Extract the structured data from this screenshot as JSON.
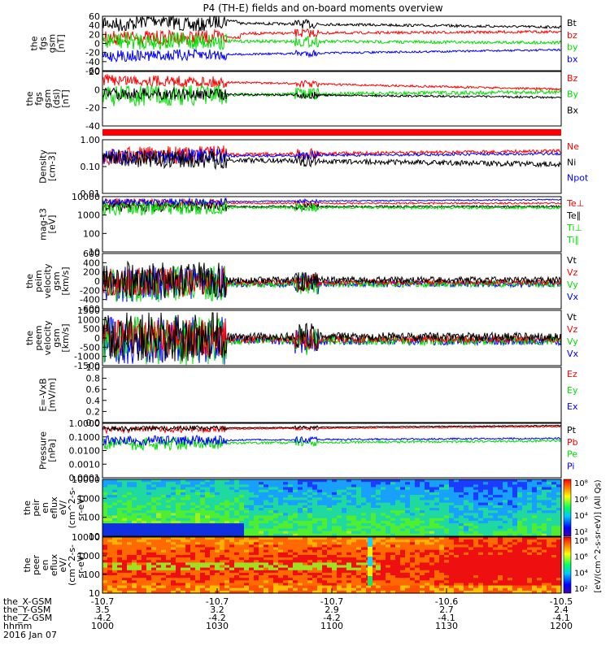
{
  "title": "P4 (TH-E) fields and on-board moments overview",
  "colors": {
    "black": "#000000",
    "red": "#ff0000",
    "green": "#00dd00",
    "blue": "#0000ff",
    "bg": "#ffffff"
  },
  "panels": [
    {
      "id": "fgs_gsm",
      "ylabel": [
        "the",
        "fgs",
        "gsm",
        "[nT]"
      ],
      "ticks": [
        "60",
        "40",
        "20",
        "0",
        "-20",
        "-40",
        "-60"
      ],
      "legend": [
        {
          "text": "Bt",
          "color": "black"
        },
        {
          "text": "bz",
          "color": "red"
        },
        {
          "text": "by",
          "color": "green"
        },
        {
          "text": "bx",
          "color": "blue"
        }
      ]
    },
    {
      "id": "fgs_dsl",
      "ylabel": [
        "the",
        "fgs",
        "gsm",
        "(dsl)",
        "[nT]"
      ],
      "ticks": [
        "20",
        "0",
        "-20",
        "-40"
      ],
      "legend": [
        {
          "text": "Bz",
          "color": "red"
        },
        {
          "text": "By",
          "color": "green"
        },
        {
          "text": "Bx",
          "color": "black"
        }
      ]
    },
    {
      "id": "density",
      "ylabel": [
        "Density",
        "[cm-3]"
      ],
      "ticks": [
        "1.00",
        "0.10",
        "0.01"
      ],
      "legend": [
        {
          "text": "Ne",
          "color": "red"
        },
        {
          "text": "Ni",
          "color": "black"
        },
        {
          "text": "Npot",
          "color": "blue"
        }
      ]
    },
    {
      "id": "temp",
      "ylabel": [
        "mag-t3",
        "[eV]"
      ],
      "ticks": [
        "10000",
        "1000",
        "100",
        "10"
      ],
      "legend": [
        {
          "text": "Te⊥",
          "color": "red"
        },
        {
          "text": "Te∥",
          "color": "black"
        },
        {
          "text": "Ti⊥",
          "color": "green"
        },
        {
          "text": "Ti∥",
          "color": "green"
        }
      ]
    },
    {
      "id": "peim_vel",
      "ylabel": [
        "the",
        "peim",
        "velocity",
        "gsm",
        "[km/s]"
      ],
      "ticks": [
        "600",
        "400",
        "200",
        "0",
        "-200",
        "-400",
        "-600"
      ],
      "legend": [
        {
          "text": "Vt",
          "color": "black"
        },
        {
          "text": "Vz",
          "color": "red"
        },
        {
          "text": "Vy",
          "color": "green"
        },
        {
          "text": "Vx",
          "color": "blue"
        }
      ]
    },
    {
      "id": "peem_vel",
      "ylabel": [
        "the",
        "peem",
        "velocity",
        "gsm",
        "[km/s]"
      ],
      "ticks": [
        "1500",
        "1000",
        "500",
        "0",
        "-500",
        "-1000",
        "-1500"
      ],
      "legend": [
        {
          "text": "Vt",
          "color": "black"
        },
        {
          "text": "Vz",
          "color": "red"
        },
        {
          "text": "Vy",
          "color": "green"
        },
        {
          "text": "Vx",
          "color": "blue"
        }
      ]
    },
    {
      "id": "efield",
      "ylabel": [
        "E=-VxB",
        "[mV/m]"
      ],
      "ticks": [
        "1.0",
        "0.8",
        "0.6",
        "0.4",
        "0.2",
        "0.0"
      ],
      "legend": [
        {
          "text": "Ez",
          "color": "red"
        },
        {
          "text": "Ey",
          "color": "green"
        },
        {
          "text": "Ex",
          "color": "blue"
        }
      ]
    },
    {
      "id": "pressure",
      "ylabel": [
        "Pressure",
        "[nPa]"
      ],
      "ticks": [
        "1.0000",
        "0.1000",
        "0.0100",
        "0.0010",
        "0.0001"
      ],
      "legend": [
        {
          "text": "Pt",
          "color": "black"
        },
        {
          "text": "Pb",
          "color": "red"
        },
        {
          "text": "Pe",
          "color": "green"
        },
        {
          "text": "Pi",
          "color": "blue"
        }
      ]
    },
    {
      "id": "peir",
      "ylabel": [
        "the",
        "peir",
        "en",
        "eflux",
        "eV/",
        "(cm^2-s-",
        "sr-eV)"
      ],
      "ticks": [
        "10000",
        "1000",
        "100",
        "10"
      ],
      "legend": []
    },
    {
      "id": "peer",
      "ylabel": [
        "the",
        "peer",
        "en",
        "eflux",
        "eV/",
        "(cm^2-s-",
        "sr-eV)"
      ],
      "ticks": [
        "10000",
        "1000",
        "100",
        "10"
      ],
      "legend": []
    }
  ],
  "colorbar": {
    "label": "[eV/(cm^2-s-sr-eV)] (All Qs)",
    "ticks_top": [
      "10⁸",
      "10⁶",
      "10⁴",
      "10²"
    ],
    "ticks_bottom": [
      "10⁸",
      "10⁶",
      "10⁴",
      "10²"
    ]
  },
  "xaxis": {
    "rows": [
      {
        "label": "the_X-GSM",
        "values": [
          "-10.7",
          "-10.7",
          "-10.7",
          "-10.6",
          "-10.5"
        ]
      },
      {
        "label": "the_Y-GSM",
        "values": [
          "3.5",
          "3.2",
          "2.9",
          "2.7",
          "2.4"
        ]
      },
      {
        "label": "the_Z-GSM",
        "values": [
          "-4.2",
          "-4.2",
          "-4.2",
          "-4.1",
          "-4.1"
        ]
      },
      {
        "label": "hhmm",
        "values": [
          "1000",
          "1030",
          "1100",
          "1130",
          "1200"
        ]
      }
    ],
    "date": "2016 Jan 07"
  },
  "chart_data": {
    "type": "line",
    "title": "P4 (TH-E) fields and on-board moments overview",
    "x": [
      "1000",
      "1030",
      "1100",
      "1130",
      "1200"
    ],
    "xlabel": "hhmm",
    "series": [
      {
        "name": "Bt",
        "values": [
          45,
          38,
          30,
          28,
          35
        ]
      },
      {
        "name": "bz",
        "values": [
          20,
          25,
          25,
          15,
          10
        ]
      },
      {
        "name": "by",
        "values": [
          8,
          0,
          5,
          3,
          2
        ]
      },
      {
        "name": "bx",
        "values": [
          -30,
          -20,
          -15,
          -12,
          -15
        ]
      },
      {
        "name": "Ne",
        "values": [
          0.25,
          0.35,
          0.3,
          0.28,
          0.3
        ]
      },
      {
        "name": "Ni",
        "values": [
          0.2,
          0.3,
          0.25,
          0.18,
          0.17
        ]
      }
    ],
    "ylim_fgs": [
      -60,
      60
    ]
  }
}
